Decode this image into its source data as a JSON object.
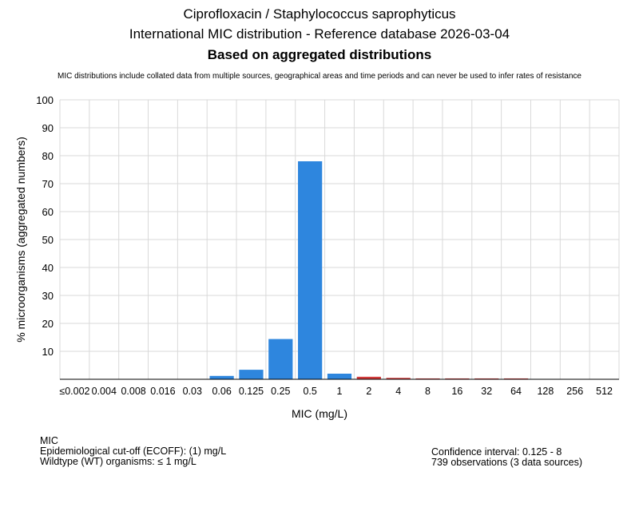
{
  "header": {
    "title": "Ciprofloxacin / Staphylococcus saprophyticus",
    "subtitle": "International MIC distribution - Reference database 2026-03-04",
    "basis": "Based on aggregated distributions",
    "disclaimer": "MIC distributions include collated data from multiple sources, geographical areas and time periods and can never be used to infer rates of resistance"
  },
  "chart_data": {
    "type": "bar",
    "xlabel": "MIC (mg/L)",
    "ylabel": "% microorganisms (aggregated numbers)",
    "ylim": [
      0,
      100
    ],
    "yticks": [
      10,
      20,
      30,
      40,
      50,
      60,
      70,
      80,
      90,
      100
    ],
    "grid": true,
    "categories": [
      "≤0.002",
      "0.004",
      "0.008",
      "0.016",
      "0.03",
      "0.06",
      "0.125",
      "0.25",
      "0.5",
      "1",
      "2",
      "4",
      "8",
      "16",
      "32",
      "64",
      "128",
      "256",
      "512"
    ],
    "values": [
      0,
      0,
      0,
      0,
      0,
      1.2,
      3.4,
      14.4,
      78,
      2.0,
      0.9,
      0.5,
      0.3,
      0.3,
      0.3,
      0.3,
      0,
      0,
      0
    ],
    "colors": {
      "wildtype": "#2e86de",
      "non_wildtype": "#d23c3c",
      "grid": "#d9d9d9",
      "axis": "#000000"
    },
    "wildtype_max_index": 9
  },
  "footer": {
    "left": [
      "MIC",
      "Epidemiological cut-off (ECOFF): (1) mg/L",
      "Wildtype (WT) organisms: ≤ 1 mg/L"
    ],
    "right": [
      "Confidence interval: 0.125 - 8",
      "739 observations (3 data sources)"
    ]
  }
}
